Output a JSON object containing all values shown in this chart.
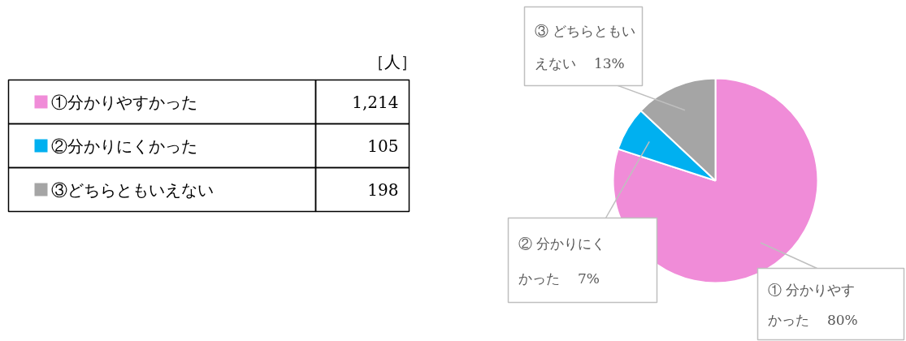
{
  "chart_data": {
    "type": "pie",
    "categories": [
      "①分かりやすかった",
      "②分かりにくかった",
      "③どちらともいえない"
    ],
    "values": [
      80,
      7,
      13
    ],
    "colors": [
      "#f08cd8",
      "#00b0f0",
      "#a5a5a5"
    ],
    "value_labels": [
      "① 分かりやすかった　 80%",
      "② 分かりにくかった　 7%",
      "③ どちらともいえない　 13%"
    ],
    "legend": "left",
    "annotations": [
      "［人］",
      "1,214",
      "105",
      "198"
    ]
  }
}
